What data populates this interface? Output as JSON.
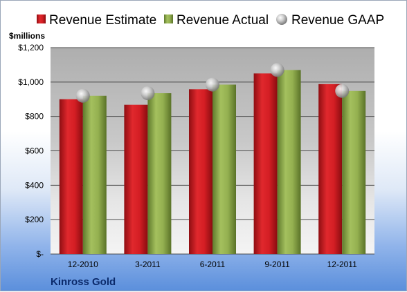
{
  "chart_data": {
    "type": "bar",
    "unit_label": "$millions",
    "company": "Kinross Gold",
    "categories": [
      "12-2010",
      "3-2011",
      "6-2011",
      "9-2011",
      "12-2011"
    ],
    "series": [
      {
        "name": "Revenue Estimate",
        "kind": "bar",
        "color": "#c0161c",
        "values": [
          900,
          868,
          958,
          1050,
          988
        ]
      },
      {
        "name": "Revenue Actual",
        "kind": "bar",
        "color": "#8aa64a",
        "values": [
          920,
          935,
          985,
          1070,
          948
        ]
      },
      {
        "name": "Revenue GAAP",
        "kind": "marker",
        "color": "#b8b8b8",
        "values": [
          920,
          935,
          985,
          1070,
          948
        ]
      }
    ],
    "ylim": [
      0,
      1200
    ],
    "yticks": [
      0,
      200,
      400,
      600,
      800,
      1000,
      1200
    ],
    "ytick_labels": [
      "$-",
      "$200",
      "$400",
      "$600",
      "$800",
      "$1,000",
      "$1,200"
    ],
    "grid": true,
    "legend_position": "top"
  }
}
